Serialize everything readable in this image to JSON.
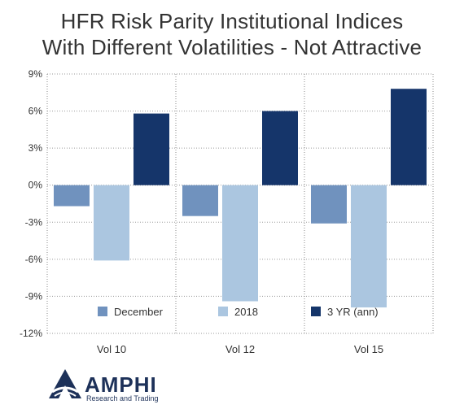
{
  "title_lines": [
    "HFR Risk Parity Institutional Indices",
    "With Different Volatilities - Not Attractive"
  ],
  "logo": {
    "name": "AMPHI",
    "tagline": "Research and Trading"
  },
  "chart_data": {
    "type": "bar",
    "categories": [
      "Vol 10",
      "Vol 12",
      "Vol 15"
    ],
    "series": [
      {
        "name": "December",
        "color": "#7092be",
        "values": [
          -1.7,
          -2.5,
          -3.1
        ]
      },
      {
        "name": "2018",
        "color": "#abc6e0",
        "values": [
          -6.1,
          -9.4,
          -9.9
        ]
      },
      {
        "name": "3 YR (ann)",
        "color": "#15356a",
        "values": [
          5.8,
          6.0,
          7.8
        ]
      }
    ],
    "ylim": [
      -12,
      9
    ],
    "yticks": [
      9,
      6,
      3,
      0,
      -3,
      -6,
      -9,
      -12
    ],
    "ytick_labels": [
      "9%",
      "6%",
      "3%",
      "0%",
      "-3%",
      "-6%",
      "-9%",
      "-12%"
    ],
    "grid": true,
    "legend_position": "bottom-inside"
  }
}
